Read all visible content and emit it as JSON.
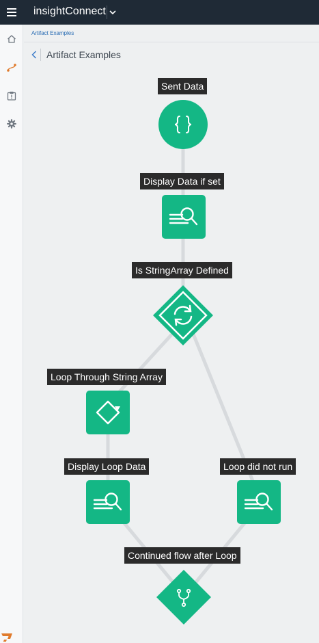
{
  "app": {
    "brand_prefix": "insight",
    "brand_name": "Connect"
  },
  "sidebar": {
    "items": [
      {
        "name": "home",
        "icon": "home-icon"
      },
      {
        "name": "workflows",
        "icon": "workflow-icon",
        "active": true
      },
      {
        "name": "jobs",
        "icon": "clipboard-alert-icon"
      },
      {
        "name": "settings",
        "icon": "gear-icon"
      }
    ]
  },
  "breadcrumb": {
    "item": "Artifact Examples"
  },
  "page": {
    "title": "Artifact Examples"
  },
  "workflow": {
    "nodes": [
      {
        "id": "sent-data",
        "label": "Sent Data",
        "type": "trigger",
        "icon": "braces-icon"
      },
      {
        "id": "display-data-if-set",
        "label": "Display Data if set",
        "type": "artifact",
        "icon": "artifact-search-icon"
      },
      {
        "id": "is-stringarray-defined",
        "label": "Is StringArray Defined",
        "type": "decision",
        "icon": "refresh-icon"
      },
      {
        "id": "loop-through-string-array",
        "label": "Loop Through String Array",
        "type": "loop",
        "icon": "loop-icon"
      },
      {
        "id": "display-loop-data",
        "label": "Display Loop Data",
        "type": "artifact",
        "icon": "artifact-search-icon"
      },
      {
        "id": "loop-did-not-run",
        "label": "Loop did not run",
        "type": "artifact",
        "icon": "artifact-search-icon"
      },
      {
        "id": "continued-flow-after-loop",
        "label": "Continued flow after Loop",
        "type": "join",
        "icon": "merge-icon"
      }
    ]
  },
  "colors": {
    "topbar": "#1f2a36",
    "node": "#14b785",
    "edge": "#d7dadd",
    "label_bg": "#2b2b2b",
    "accent": "#e07b2d",
    "link": "#2a6db4"
  }
}
